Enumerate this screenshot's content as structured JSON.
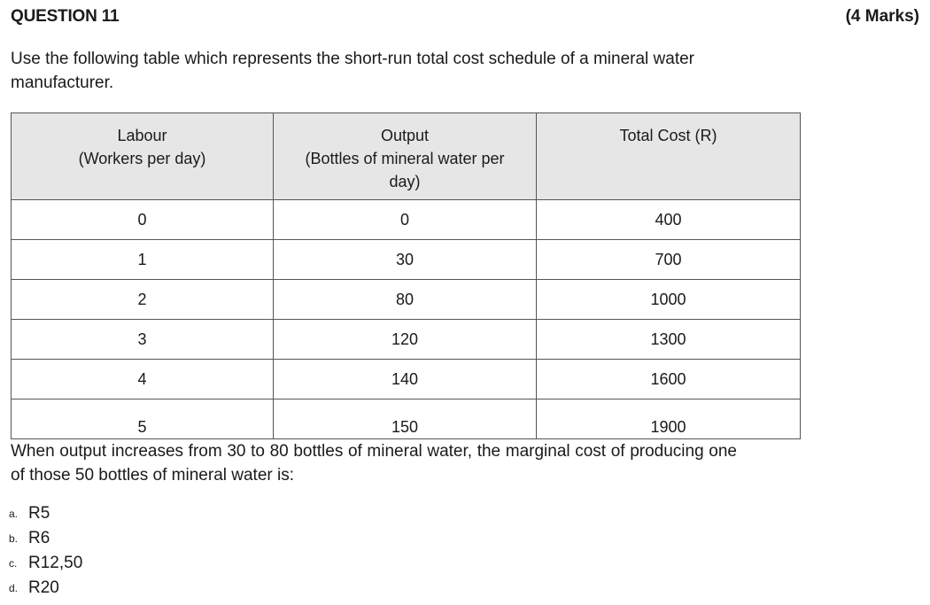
{
  "question": {
    "title": "QUESTION 11",
    "marks": "(4 Marks)",
    "intro": "Use the following table which represents the short-run total cost schedule of a mineral water manufacturer."
  },
  "table": {
    "headers": [
      [
        "Labour",
        "(Workers per day)"
      ],
      [
        "Output",
        "(Bottles of mineral water per",
        "day)"
      ],
      [
        "Total Cost (R)"
      ]
    ],
    "rows": [
      [
        "0",
        "0",
        "400"
      ],
      [
        "1",
        "30",
        "700"
      ],
      [
        "2",
        "80",
        "1000"
      ],
      [
        "3",
        "120",
        "1300"
      ],
      [
        "4",
        "140",
        "1600"
      ],
      [
        "5",
        "150",
        "1900"
      ]
    ]
  },
  "stem": "When output increases from 30 to 80 bottles of mineral water, the marginal cost of producing one of those 50 bottles of mineral water is:",
  "options": [
    {
      "letter": "a.",
      "text": "R5"
    },
    {
      "letter": "b.",
      "text": "R6"
    },
    {
      "letter": "c.",
      "text": "R12,50"
    },
    {
      "letter": "d.",
      "text": "R20"
    }
  ]
}
